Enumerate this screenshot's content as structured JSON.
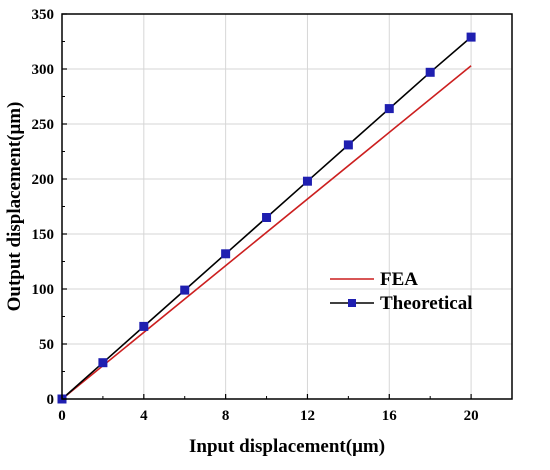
{
  "chart_data": {
    "type": "line",
    "title": "",
    "xlabel": "Input displacement(μm)",
    "ylabel": "Output displacement(μm)",
    "xlim": [
      0,
      22
    ],
    "ylim": [
      0,
      350
    ],
    "xticks": [
      0,
      4,
      8,
      12,
      16,
      20
    ],
    "yticks": [
      0,
      50,
      100,
      150,
      200,
      250,
      300,
      350
    ],
    "grid": true,
    "legend_position": "bottom-right",
    "series": [
      {
        "name": "FEA",
        "color": "#cc1f1f",
        "marker": "none",
        "x": [
          0,
          20
        ],
        "y": [
          0,
          303
        ]
      },
      {
        "name": "Theoretical",
        "color": "#000000",
        "marker": "square",
        "marker_color": "#1f1fb0",
        "x": [
          0,
          2,
          4,
          6,
          8,
          10,
          12,
          14,
          16,
          18,
          20
        ],
        "y": [
          0,
          33,
          66,
          99,
          132,
          165,
          198,
          231,
          264,
          297,
          329
        ]
      }
    ]
  }
}
